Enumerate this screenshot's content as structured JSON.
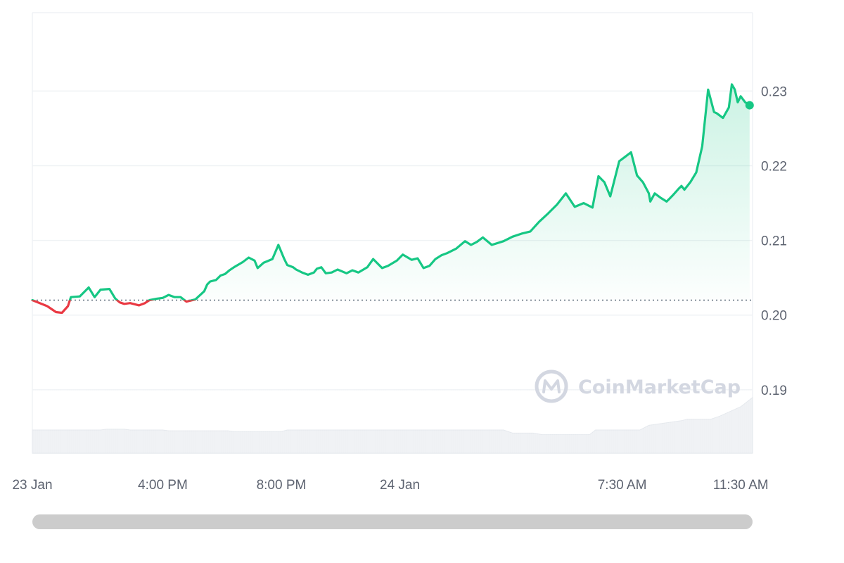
{
  "chart_data": {
    "type": "line",
    "title": "",
    "xlabel": "",
    "ylabel": "",
    "x_tick_labels": [
      "23 Jan",
      "4:00 PM",
      "8:00 PM",
      "24 Jan",
      "7:30 AM",
      "11:30 AM"
    ],
    "x_tick_positions_hours": [
      0,
      4.4,
      8.4,
      12.4,
      19.9,
      23.9
    ],
    "x_range_hours": [
      0,
      24.3
    ],
    "y_ticks": [
      "0.19",
      "0.20",
      "0.21",
      "0.22",
      "0.23"
    ],
    "ylim": [
      0.1815,
      0.2405
    ],
    "baseline": 0.202,
    "baseline_style": "dotted",
    "colors": {
      "up": "#16c784",
      "down": "#ea3943",
      "volume": "#eff1f4",
      "grid": "#eff2f5",
      "baseline": "#5f6c7b"
    },
    "watermark": "CoinMarketCap",
    "series": [
      {
        "x": [
          0,
          0.5,
          0.8,
          1.0,
          1.2,
          1.3,
          1.6,
          1.9,
          2.1,
          2.3,
          2.6,
          2.8,
          2.95,
          3.1,
          3.3,
          3.6,
          3.8,
          3.95,
          4.2,
          4.4,
          4.6,
          4.8,
          5.0,
          5.2,
          5.5,
          5.8,
          5.9,
          6.0,
          6.2,
          6.35,
          6.5,
          6.65,
          6.8,
          7.1,
          7.3,
          7.5,
          7.6,
          7.8,
          8.1,
          8.3,
          8.5,
          8.6,
          8.8,
          8.9,
          9.1,
          9.3,
          9.5,
          9.6,
          9.75,
          9.9,
          10.1,
          10.3,
          10.6,
          10.8,
          11.0,
          11.3,
          11.5,
          11.8,
          12.0,
          12.3,
          12.5,
          12.8,
          13.0,
          13.2,
          13.4,
          13.6,
          13.8,
          14.0,
          14.3,
          14.6,
          14.8,
          15.0,
          15.2,
          15.5,
          15.9,
          16.2,
          16.5,
          16.8,
          17.1,
          17.4,
          17.7,
          18.0,
          18.3,
          18.6,
          18.8,
          18.9,
          19.1,
          19.3,
          19.5,
          19.8,
          20.0,
          20.2,
          20.4,
          20.6,
          20.8,
          20.85,
          21.0,
          21.2,
          21.4,
          21.5,
          21.6,
          21.8,
          21.9,
          22.0,
          22.2,
          22.4,
          22.6,
          22.8,
          23.0,
          23.1,
          23.3,
          23.5,
          23.6,
          23.7,
          23.8,
          23.9,
          24.05,
          24.2
        ],
        "y": [
          0.202,
          0.2012,
          0.2004,
          0.2003,
          0.2012,
          0.2024,
          0.2025,
          0.2037,
          0.2024,
          0.2034,
          0.2035,
          0.2022,
          0.2017,
          0.2015,
          0.2016,
          0.2013,
          0.2016,
          0.202,
          0.2022,
          0.2023,
          0.2027,
          0.2024,
          0.2024,
          0.2018,
          0.2021,
          0.2032,
          0.2041,
          0.2045,
          0.2047,
          0.2053,
          0.2055,
          0.206,
          0.2064,
          0.2071,
          0.2077,
          0.2073,
          0.2063,
          0.207,
          0.2075,
          0.2094,
          0.2075,
          0.2067,
          0.2064,
          0.2061,
          0.2057,
          0.2054,
          0.2057,
          0.2062,
          0.2064,
          0.2056,
          0.2057,
          0.2061,
          0.2056,
          0.206,
          0.2057,
          0.2064,
          0.2075,
          0.2063,
          0.2066,
          0.2073,
          0.2081,
          0.2074,
          0.2076,
          0.2063,
          0.2066,
          0.2075,
          0.208,
          0.2083,
          0.2089,
          0.2099,
          0.2094,
          0.2098,
          0.2104,
          0.2094,
          0.2099,
          0.2105,
          0.2109,
          0.2112,
          0.2125,
          0.2136,
          0.2148,
          0.2163,
          0.2145,
          0.215,
          0.2146,
          0.2144,
          0.2186,
          0.2178,
          0.2159,
          0.2206,
          0.2212,
          0.2218,
          0.2187,
          0.2178,
          0.2163,
          0.2152,
          0.2163,
          0.2157,
          0.2152,
          0.2156,
          0.216,
          0.2169,
          0.2173,
          0.2168,
          0.2178,
          0.2191,
          0.2226,
          0.2302,
          0.2272,
          0.227,
          0.2264,
          0.2278,
          0.2309,
          0.2302,
          0.2285,
          0.2293,
          0.2285,
          0.2281
        ]
      }
    ],
    "volume": {
      "x": [
        0,
        2.3,
        2.5,
        3.1,
        3.3,
        4.4,
        4.6,
        6.6,
        6.8,
        8.4,
        8.6,
        11.8,
        12.0,
        15.9,
        16.2,
        16.9,
        17.2,
        18.8,
        19.0,
        20.5,
        20.8,
        21.9,
        22.1,
        22.9,
        23.2,
        23.9,
        24.3
      ],
      "h": [
        0.15,
        0.15,
        0.155,
        0.155,
        0.15,
        0.15,
        0.145,
        0.145,
        0.14,
        0.14,
        0.15,
        0.15,
        0.15,
        0.15,
        0.13,
        0.13,
        0.12,
        0.12,
        0.15,
        0.15,
        0.18,
        0.21,
        0.22,
        0.22,
        0.24,
        0.3,
        0.36
      ]
    }
  }
}
